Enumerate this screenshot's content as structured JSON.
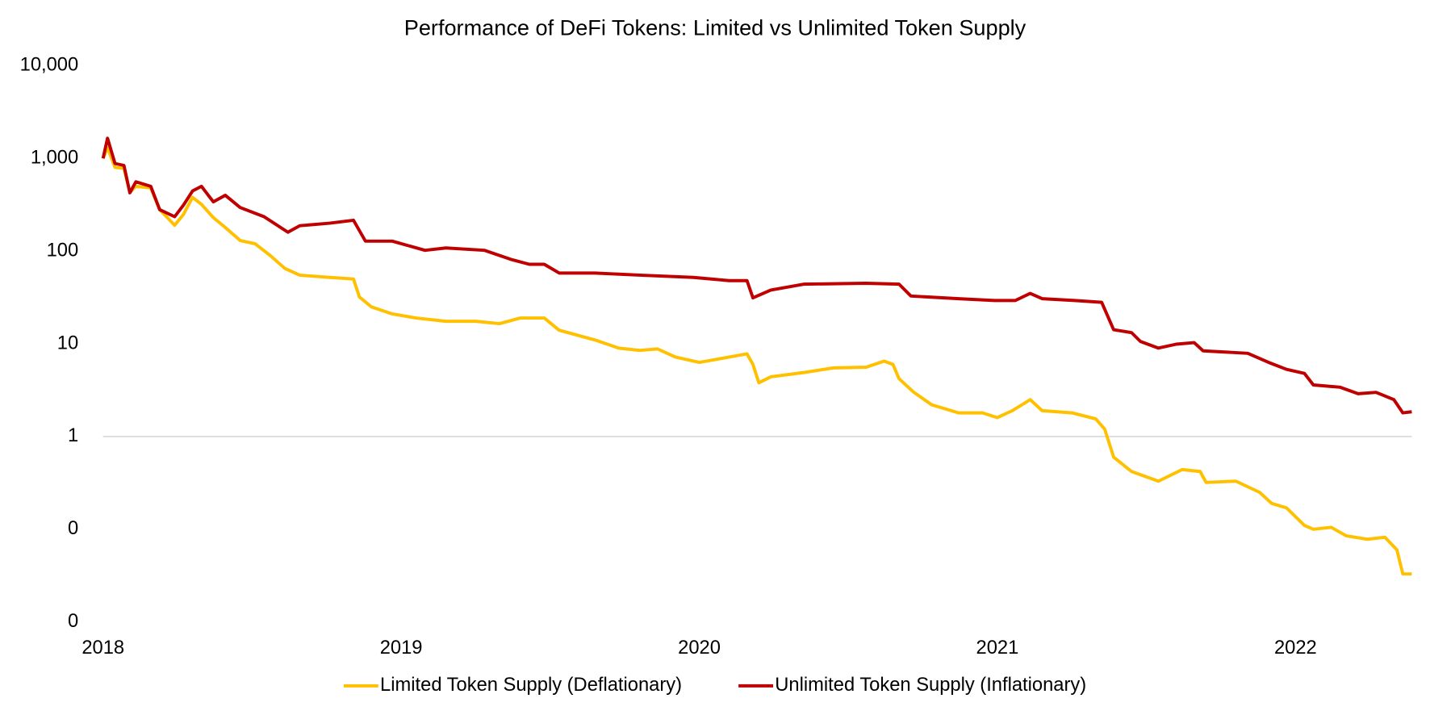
{
  "chart_data": {
    "type": "line",
    "title": "Performance of DeFi Tokens: Limited vs Unlimited Token Supply",
    "log_scale_y": true,
    "x_axis_crosses": 1,
    "legend": "bottom",
    "xlim": [
      2018,
      2022.39
    ],
    "xticks": [
      2018,
      2019,
      2020,
      2021,
      2022
    ],
    "ylim": [
      0.01,
      10000
    ],
    "yticks": [
      {
        "value": 0.01,
        "label": "0"
      },
      {
        "value": 0.1,
        "label": "0"
      },
      1,
      10,
      100,
      {
        "value": 1000,
        "label": "1,000"
      },
      {
        "value": 10000,
        "label": "10,000"
      }
    ],
    "series": [
      {
        "name": "Limited Token Supply (Deflationary)",
        "color": "#FFC000",
        "x": [
          2018.0,
          2018.015,
          2018.04,
          2018.07,
          2018.09,
          2018.11,
          2018.16,
          2018.19,
          2018.24,
          2018.27,
          2018.3,
          2018.33,
          2018.37,
          2018.41,
          2018.46,
          2018.51,
          2018.56,
          2018.61,
          2018.66,
          2018.76,
          2018.84,
          2018.86,
          2018.9,
          2018.97,
          2019.05,
          2019.15,
          2019.25,
          2019.33,
          2019.4,
          2019.48,
          2019.53,
          2019.65,
          2019.73,
          2019.8,
          2019.86,
          2019.92,
          2020.0,
          2020.08,
          2020.16,
          2020.18,
          2020.2,
          2020.24,
          2020.35,
          2020.45,
          2020.56,
          2020.62,
          2020.65,
          2020.67,
          2020.72,
          2020.78,
          2020.87,
          2020.95,
          2021.0,
          2021.05,
          2021.11,
          2021.15,
          2021.25,
          2021.33,
          2021.36,
          2021.39,
          2021.45,
          2021.54,
          2021.62,
          2021.68,
          2021.7,
          2021.8,
          2021.88,
          2021.92,
          2021.97,
          2022.03,
          2022.06,
          2022.12,
          2022.17,
          2022.24,
          2022.3,
          2022.34,
          2022.36,
          2022.39
        ],
        "values": [
          1000,
          1300,
          800,
          780,
          430,
          500,
          480,
          280,
          190,
          250,
          380,
          320,
          230,
          180,
          130,
          120,
          90,
          65,
          55,
          52,
          50,
          32,
          25,
          21,
          19,
          17.5,
          17.5,
          16.5,
          19,
          19,
          14,
          11,
          9,
          8.5,
          8.8,
          7.2,
          6.3,
          7,
          7.8,
          6,
          3.8,
          4.4,
          4.9,
          5.5,
          5.6,
          6.5,
          6,
          4.2,
          3.0,
          2.2,
          1.8,
          1.8,
          1.6,
          1.9,
          2.5,
          1.9,
          1.8,
          1.55,
          1.2,
          0.6,
          0.42,
          0.33,
          0.44,
          0.42,
          0.32,
          0.33,
          0.25,
          0.19,
          0.17,
          0.11,
          0.1,
          0.105,
          0.085,
          0.078,
          0.082,
          0.06,
          0.033,
          0.033
        ]
      },
      {
        "name": "Unlimited Token Supply (Inflationary)",
        "color": "#C00000",
        "x": [
          2018.0,
          2018.015,
          2018.04,
          2018.07,
          2018.09,
          2018.11,
          2018.16,
          2018.19,
          2018.24,
          2018.27,
          2018.3,
          2018.33,
          2018.37,
          2018.41,
          2018.46,
          2018.54,
          2018.62,
          2018.66,
          2018.76,
          2018.84,
          2018.88,
          2018.97,
          2019.08,
          2019.15,
          2019.28,
          2019.37,
          2019.43,
          2019.48,
          2019.53,
          2019.65,
          2019.8,
          2019.98,
          2020.1,
          2020.16,
          2020.18,
          2020.24,
          2020.35,
          2020.56,
          2020.67,
          2020.71,
          2020.87,
          2020.99,
          2021.06,
          2021.11,
          2021.15,
          2021.26,
          2021.35,
          2021.39,
          2021.45,
          2021.48,
          2021.54,
          2021.6,
          2021.66,
          2021.69,
          2021.84,
          2021.91,
          2021.97,
          2022.03,
          2022.06,
          2022.15,
          2022.21,
          2022.27,
          2022.33,
          2022.36,
          2022.39
        ],
        "values": [
          1000,
          1650,
          880,
          840,
          425,
          560,
          500,
          280,
          235,
          315,
          445,
          500,
          340,
          400,
          295,
          235,
          160,
          188,
          200,
          215,
          128,
          128,
          102,
          108,
          102,
          81,
          72,
          72,
          58,
          58,
          55,
          52,
          48,
          48,
          31.3,
          38,
          44,
          45,
          44,
          32.8,
          30.7,
          29.3,
          29.3,
          35,
          30.7,
          29.3,
          28,
          14.2,
          13.2,
          10.6,
          9,
          9.9,
          10.3,
          8.4,
          7.9,
          6.3,
          5.3,
          4.8,
          3.6,
          3.4,
          2.9,
          3.0,
          2.5,
          1.8,
          1.85
        ]
      }
    ]
  }
}
